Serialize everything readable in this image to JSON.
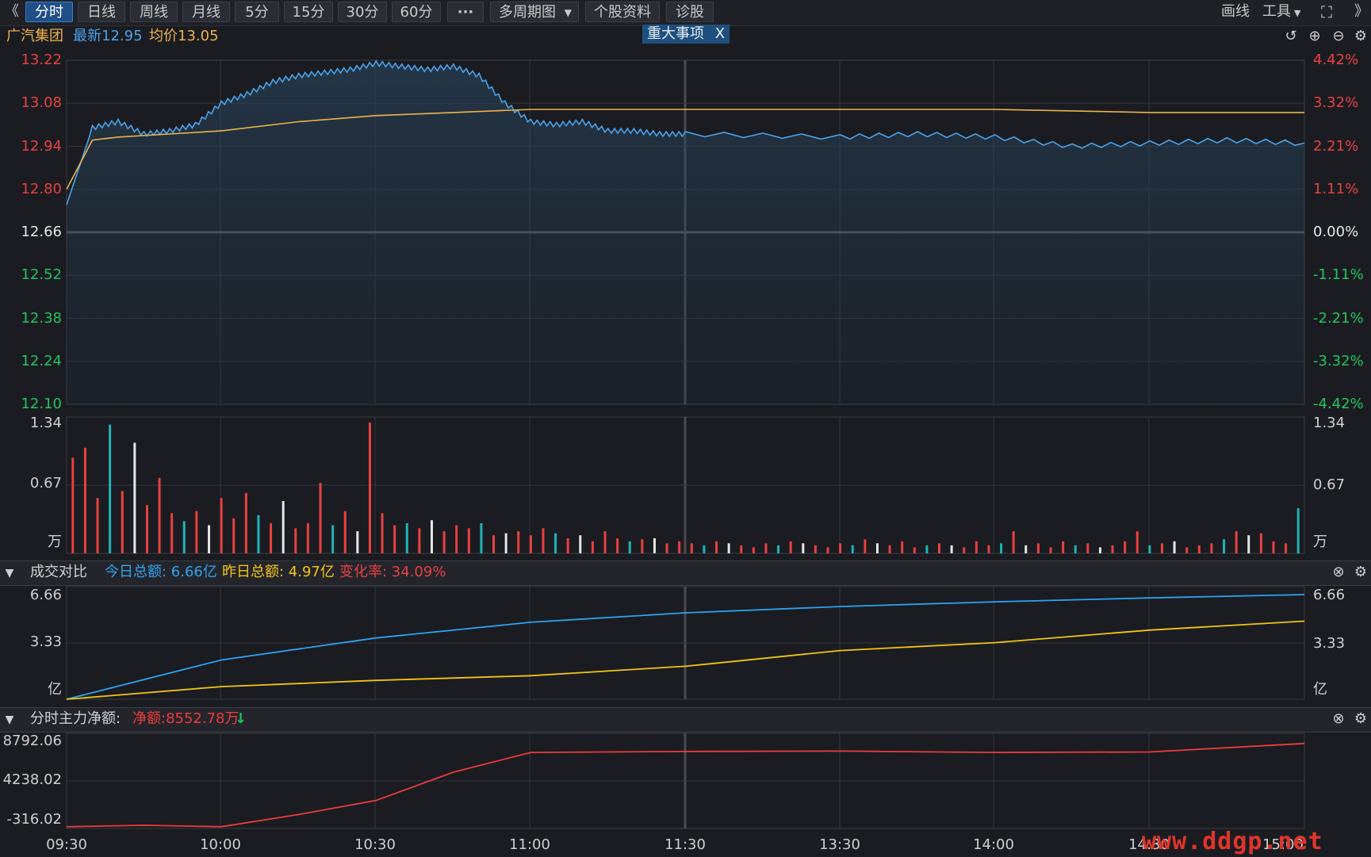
{
  "toolbar": {
    "back_glyph": "《",
    "periods": [
      "分时",
      "日线",
      "周线",
      "月线",
      "5分",
      "15分",
      "30分",
      "60分"
    ],
    "more": "···",
    "multi_period": "多周期图",
    "stock_info": "个股资料",
    "diagnose": "诊股",
    "draw": "画线",
    "tools": "工具",
    "expand_icon": "fullscreen-icon",
    "forward_glyph": "》"
  },
  "info": {
    "name": "广汽集团",
    "latest": "最新12.95",
    "avg": "均价13.05",
    "event_label": "重大事项",
    "event_close": "X"
  },
  "colors": {
    "price_line": "#4aa3ec",
    "avg_line": "#f0b24a",
    "up": "#e84040",
    "down": "#22c55e",
    "cyan_bar": "#1fb3b8",
    "today_line": "#2ea3f2",
    "yesterday_line": "#f3c514",
    "flow_line": "#ee3b3b"
  },
  "price_axis": {
    "left": [
      "13.22",
      "13.08",
      "12.94",
      "12.80",
      "12.66",
      "12.52",
      "12.38",
      "12.24",
      "12.10"
    ],
    "right": [
      "4.42%",
      "3.32%",
      "2.21%",
      "1.11%",
      "0.00%",
      "-1.11%",
      "-2.21%",
      "-3.32%",
      "-4.42%"
    ]
  },
  "volume_axis": {
    "left": [
      "1.34",
      "0.67",
      "万"
    ],
    "right": [
      "1.34",
      "0.67",
      "万"
    ]
  },
  "turnover_panel": {
    "title": "成交对比",
    "today": "今日总额: 6.66亿",
    "yesterday": "昨日总额: 4.97亿",
    "change": "变化率: 34.09%",
    "axis_left": [
      "6.66",
      "3.33",
      "亿"
    ],
    "axis_right": [
      "6.66",
      "3.33",
      "亿"
    ]
  },
  "flow_panel": {
    "title": "分时主力净额:",
    "net": "净额:8552.78万",
    "arrow": "↓",
    "axis_left": [
      "8792.06",
      "4238.02",
      "-316.02"
    ]
  },
  "time_labels": [
    "09:30",
    "10:00",
    "10:30",
    "11:00",
    "11:30",
    "13:30",
    "14:00",
    "14:30",
    "15:00"
  ],
  "watermark": "www.ddgp.net",
  "chart_data": [
    {
      "type": "line",
      "title": "",
      "ylim": [
        12.1,
        13.22
      ],
      "series": [
        {
          "name": "最新",
          "x": [
            "09:30",
            "09:35",
            "09:40",
            "09:45",
            "09:50",
            "09:55",
            "10:00",
            "10:05",
            "10:10",
            "10:15",
            "10:20",
            "10:25",
            "10:30",
            "10:35",
            "10:40",
            "10:45",
            "10:50",
            "10:55",
            "11:00",
            "11:05",
            "11:10",
            "11:15",
            "11:20",
            "11:25",
            "11:30",
            "13:30",
            "13:45",
            "14:00",
            "14:15",
            "14:30",
            "14:45",
            "15:00"
          ],
          "values": [
            12.75,
            13.0,
            13.02,
            12.98,
            12.99,
            13.01,
            13.08,
            13.11,
            13.15,
            13.17,
            13.18,
            13.19,
            13.21,
            13.2,
            13.19,
            13.2,
            13.17,
            13.08,
            13.02,
            13.01,
            13.02,
            12.99,
            12.99,
            12.98,
            12.98,
            12.97,
            12.98,
            12.97,
            12.94,
            12.95,
            12.96,
            12.95
          ]
        },
        {
          "name": "均价",
          "x": [
            "09:30",
            "09:35",
            "09:40",
            "09:50",
            "10:00",
            "10:15",
            "10:30",
            "10:45",
            "11:00",
            "11:30",
            "13:30",
            "14:00",
            "14:30",
            "15:00"
          ],
          "values": [
            12.8,
            12.96,
            12.97,
            12.98,
            12.99,
            13.02,
            13.04,
            13.05,
            13.06,
            13.06,
            13.06,
            13.06,
            13.05,
            13.05
          ]
        }
      ]
    },
    {
      "type": "bar",
      "title": "",
      "ylim": [
        0,
        1.34
      ],
      "ylabel": "万",
      "values": [
        0.95,
        1.05,
        0.55,
        1.28,
        0.62,
        1.1,
        0.48,
        0.75,
        0.4,
        0.32,
        0.42,
        0.28,
        0.55,
        0.35,
        0.6,
        0.38,
        0.3,
        0.52,
        0.25,
        0.3,
        0.7,
        0.28,
        0.42,
        0.22,
        1.3,
        0.4,
        0.28,
        0.3,
        0.25,
        0.33,
        0.22,
        0.28,
        0.25,
        0.3,
        0.18,
        0.2,
        0.22,
        0.18,
        0.25,
        0.2,
        0.15,
        0.18,
        0.12,
        0.22,
        0.15,
        0.12,
        0.14,
        0.15,
        0.1,
        0.12,
        0.1,
        0.08,
        0.12,
        0.1,
        0.08,
        0.06,
        0.1,
        0.08,
        0.12,
        0.1,
        0.08,
        0.06,
        0.1,
        0.08,
        0.14,
        0.1,
        0.08,
        0.12,
        0.06,
        0.08,
        0.1,
        0.08,
        0.06,
        0.12,
        0.08,
        0.1,
        0.22,
        0.08,
        0.1,
        0.06,
        0.12,
        0.08,
        0.1,
        0.06,
        0.08,
        0.12,
        0.22,
        0.08,
        0.1,
        0.12,
        0.06,
        0.08,
        0.1,
        0.14,
        0.22,
        0.18,
        0.2,
        0.12,
        0.1,
        0.45
      ],
      "colors_pattern": [
        "up",
        "up",
        "up",
        "down",
        "up",
        "neutral"
      ]
    },
    {
      "type": "line",
      "title": "成交对比",
      "ylim": [
        0,
        6.66
      ],
      "ylabel": "亿",
      "x": [
        "09:30",
        "10:00",
        "10:30",
        "11:00",
        "11:30",
        "13:30",
        "14:00",
        "14:30",
        "15:00"
      ],
      "series": [
        {
          "name": "今日总额",
          "values": [
            0,
            2.5,
            3.9,
            4.9,
            5.5,
            5.9,
            6.2,
            6.45,
            6.66
          ]
        },
        {
          "name": "昨日总额",
          "values": [
            0,
            0.8,
            1.2,
            1.5,
            2.1,
            3.1,
            3.6,
            4.4,
            4.97
          ]
        }
      ]
    },
    {
      "type": "line",
      "title": "分时主力净额:",
      "ylim": [
        -316.02,
        8792.06
      ],
      "x": [
        "09:30",
        "09:45",
        "10:00",
        "10:15",
        "10:30",
        "10:45",
        "11:00",
        "11:30",
        "13:30",
        "14:00",
        "14:30",
        "15:00"
      ],
      "series": [
        {
          "name": "净额",
          "values": [
            -300,
            -150,
            -300,
            1000,
            2500,
            5500,
            7600,
            7700,
            7750,
            7600,
            7650,
            8552.78
          ]
        }
      ]
    }
  ]
}
